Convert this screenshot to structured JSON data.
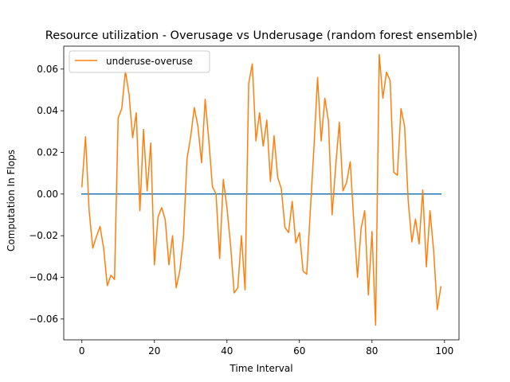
{
  "chart_data": {
    "type": "line",
    "title": "Resource utilization - Overusage vs Underusage (random forest ensemble)",
    "xlabel": "Time Interval",
    "ylabel": "Computation In Flops",
    "xlim": [
      -5,
      104
    ],
    "ylim": [
      -0.07,
      0.071
    ],
    "x_ticks": [
      0,
      20,
      40,
      60,
      80,
      100
    ],
    "y_ticks": [
      -0.06,
      -0.04,
      -0.02,
      0.0,
      0.02,
      0.04,
      0.06
    ],
    "x_tick_labels": [
      "0",
      "20",
      "40",
      "60",
      "80",
      "100"
    ],
    "y_tick_labels": [
      "−0.06",
      "−0.04",
      "−0.02",
      "0.00",
      "0.02",
      "0.04",
      "0.06"
    ],
    "grid": false,
    "legend": {
      "placement": "upper-left",
      "entries": [
        "underuse-overuse"
      ]
    },
    "colors": {
      "baseline": "#1f77b4",
      "series": "#ff7f0e"
    },
    "series": [
      {
        "name": "",
        "color": "#1f77b4",
        "x": [
          0,
          99
        ],
        "values": [
          0.0,
          0.0
        ]
      },
      {
        "name": "underuse-overuse",
        "color": "#ff7f0e",
        "x": [
          0,
          1,
          2,
          3,
          4,
          5,
          6,
          7,
          8,
          9,
          10,
          11,
          12,
          13,
          14,
          15,
          16,
          17,
          18,
          19,
          20,
          21,
          22,
          23,
          24,
          25,
          26,
          27,
          28,
          29,
          30,
          31,
          32,
          33,
          34,
          35,
          36,
          37,
          38,
          39,
          40,
          41,
          42,
          43,
          44,
          45,
          46,
          47,
          48,
          49,
          50,
          51,
          52,
          53,
          54,
          55,
          56,
          57,
          58,
          59,
          60,
          61,
          62,
          63,
          64,
          65,
          66,
          67,
          68,
          69,
          70,
          71,
          72,
          73,
          74,
          75,
          76,
          77,
          78,
          79,
          80,
          81,
          82,
          83,
          84,
          85,
          86,
          87,
          88,
          89,
          90,
          91,
          92,
          93,
          94,
          95,
          96,
          97,
          98,
          99
        ],
        "values": [
          0.0035,
          0.0275,
          -0.008,
          -0.026,
          -0.0205,
          -0.0155,
          -0.026,
          -0.044,
          -0.039,
          -0.041,
          0.0365,
          0.041,
          0.059,
          0.048,
          0.027,
          0.039,
          -0.008,
          0.031,
          0.0015,
          0.0245,
          -0.034,
          -0.011,
          -0.0065,
          -0.0125,
          -0.034,
          -0.02,
          -0.045,
          -0.037,
          -0.021,
          0.017,
          0.0275,
          0.0415,
          0.0325,
          0.015,
          0.0455,
          0.026,
          0.0035,
          0.0,
          -0.031,
          0.007,
          -0.0065,
          -0.0245,
          -0.0475,
          -0.045,
          -0.02,
          -0.046,
          0.053,
          0.0625,
          0.0255,
          0.039,
          0.023,
          0.0355,
          0.006,
          0.028,
          0.008,
          0.0025,
          -0.016,
          -0.0185,
          -0.0035,
          -0.0235,
          -0.0185,
          -0.037,
          -0.0385,
          -0.008,
          0.0225,
          0.056,
          0.0255,
          0.046,
          0.035,
          -0.01,
          0.0135,
          0.0345,
          0.0015,
          0.0055,
          0.0155,
          -0.0135,
          -0.04,
          -0.0165,
          -0.008,
          -0.0485,
          -0.018,
          -0.063,
          0.067,
          0.046,
          0.0585,
          0.0545,
          0.0105,
          0.009,
          0.041,
          0.0325,
          -0.0035,
          -0.023,
          -0.012,
          -0.024,
          0.002,
          -0.035,
          -0.008,
          -0.027,
          -0.0555,
          -0.0445
        ]
      }
    ]
  }
}
